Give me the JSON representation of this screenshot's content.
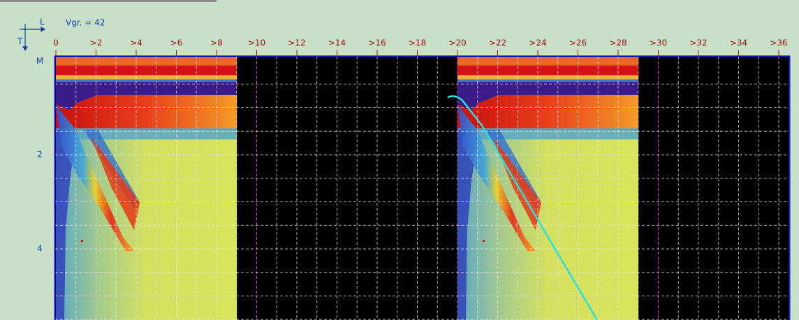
{
  "view": {
    "velocity_label": "Vgr. = 42",
    "axis_icon": {
      "horizontal": "L",
      "vertical": "T"
    },
    "x_tick_labels": [
      "0",
      ">2",
      ">4",
      ">6",
      ">8",
      ">10",
      ">12",
      ">14",
      ">16",
      ">18",
      ">20",
      ">22",
      ">24",
      ">26",
      ">28",
      ">30",
      ">32",
      ">34",
      ">36"
    ],
    "y_labels": [
      "M",
      "2",
      "4"
    ]
  }
}
